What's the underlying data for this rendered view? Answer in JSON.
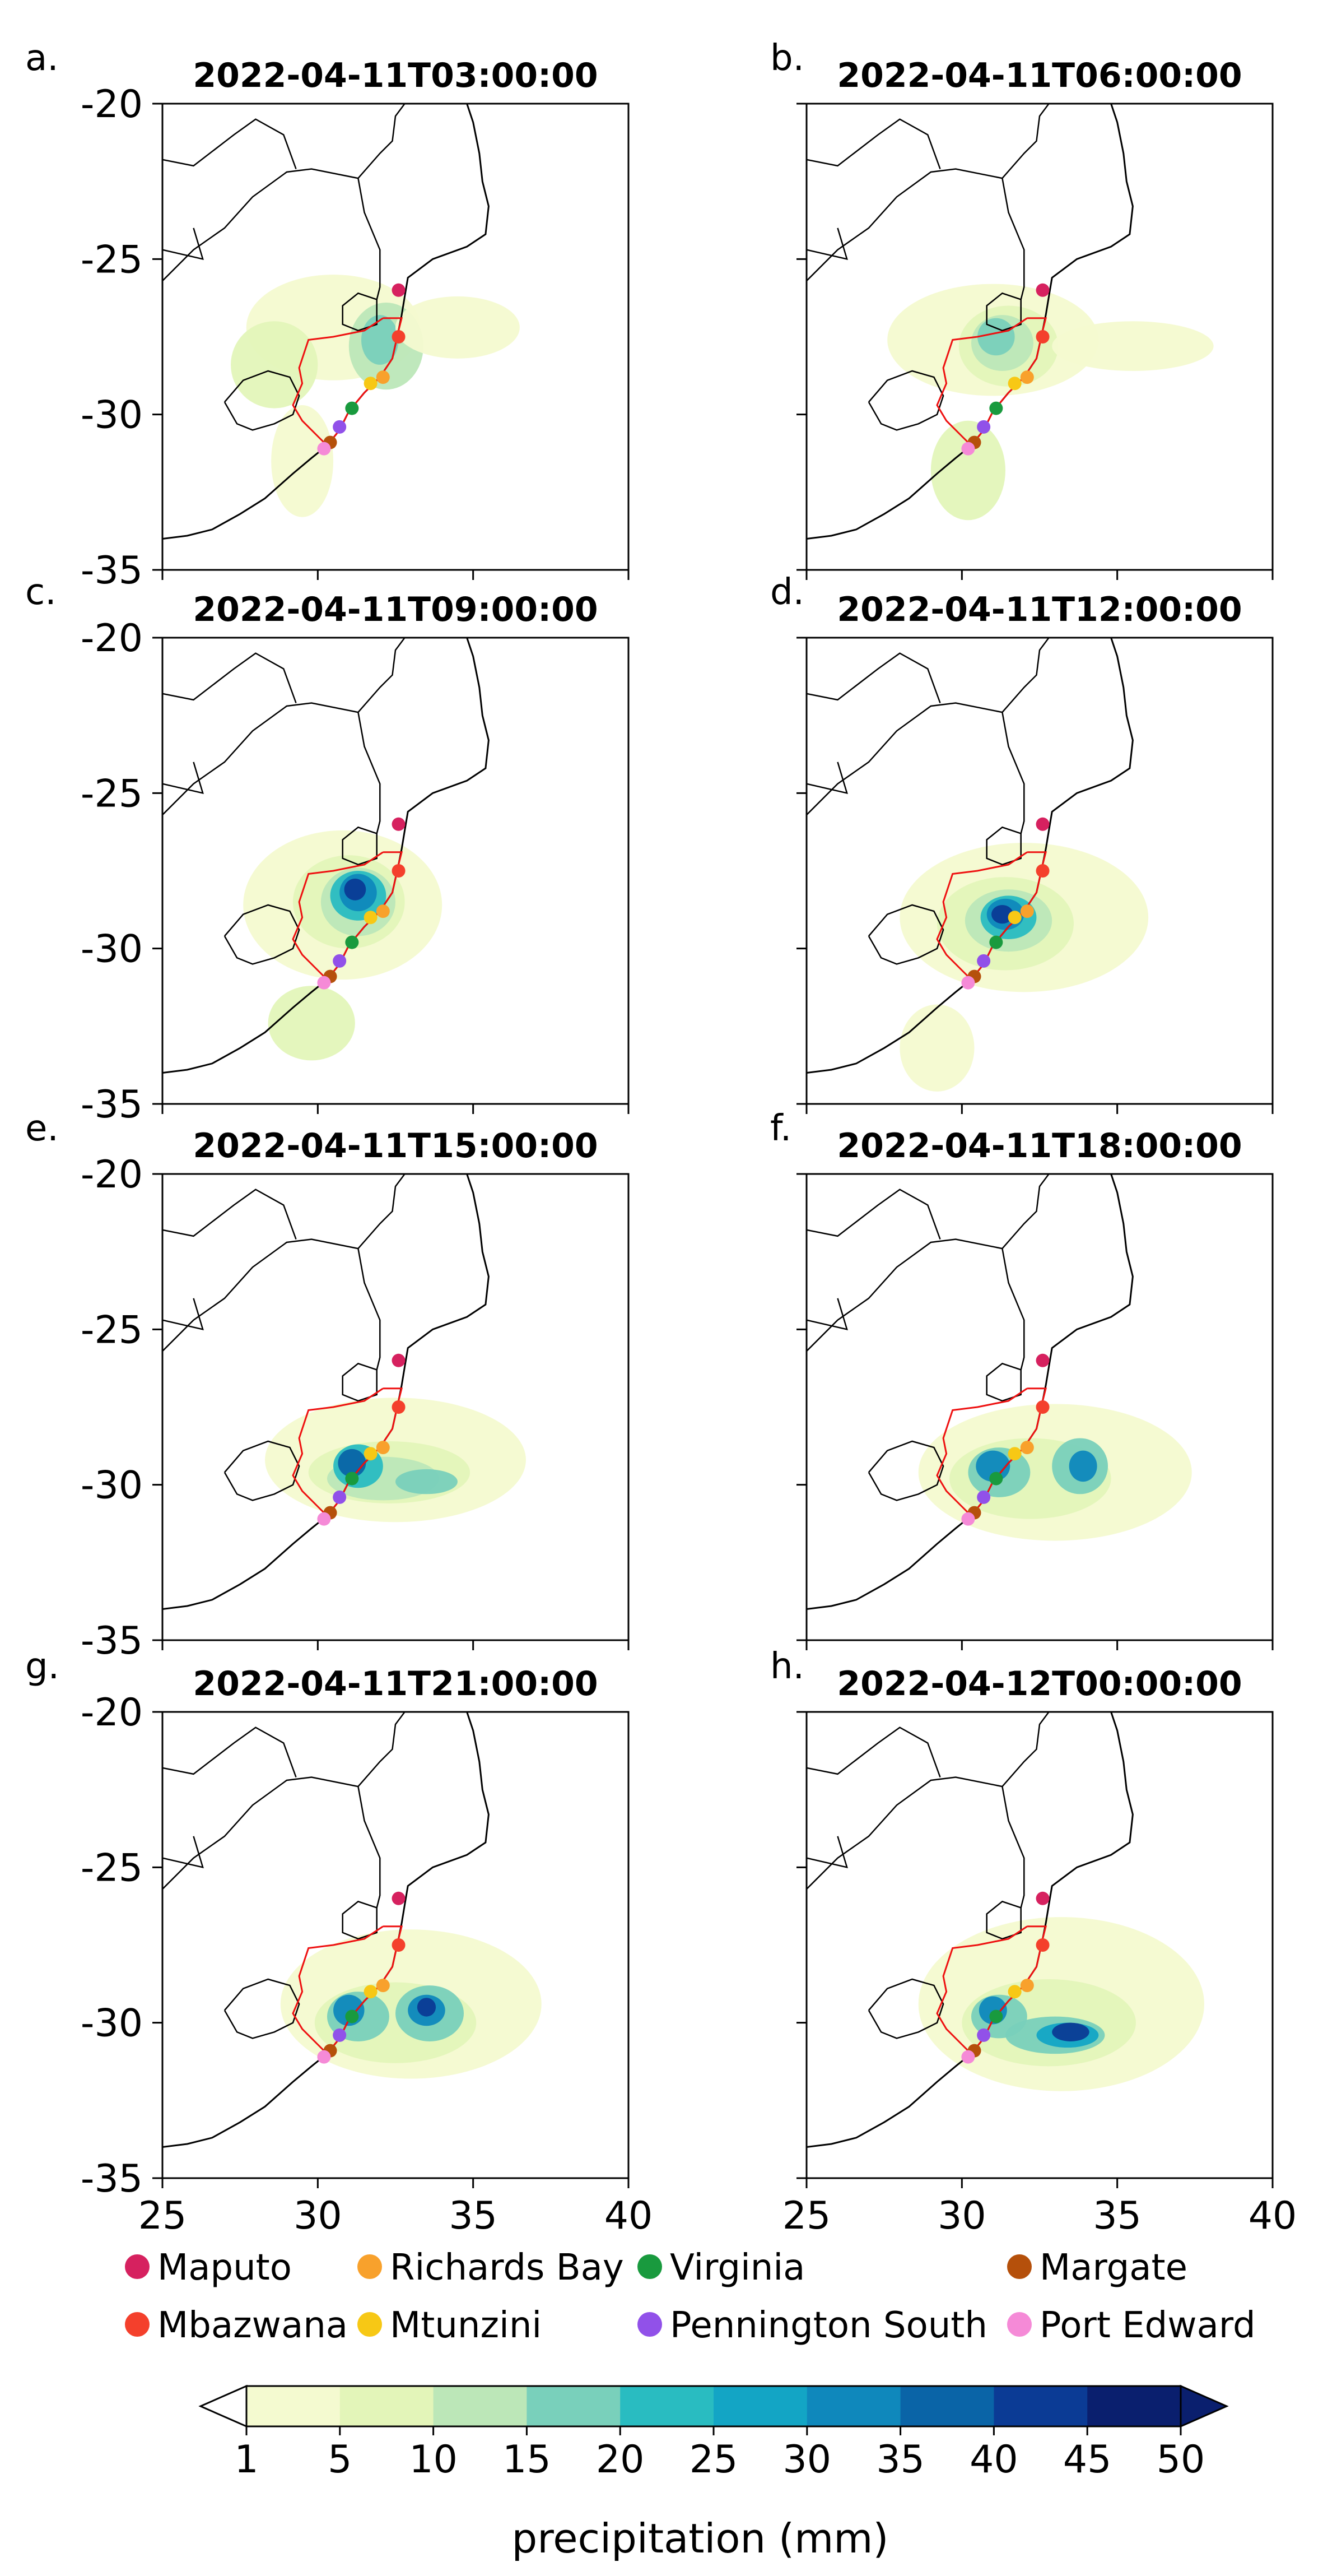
{
  "figure": {
    "xticks": [
      25,
      30,
      35,
      40
    ],
    "yticks": [
      -20,
      -25,
      -30,
      -35
    ],
    "xlim": [
      25,
      40
    ],
    "ylim": [
      -35,
      -20
    ]
  },
  "chart_data": {
    "type": "heatmap",
    "panels": [
      {
        "letter": "a.",
        "title": "2022-04-11T03:00:00"
      },
      {
        "letter": "b.",
        "title": "2022-04-11T06:00:00"
      },
      {
        "letter": "c.",
        "title": "2022-04-11T09:00:00"
      },
      {
        "letter": "d.",
        "title": "2022-04-11T12:00:00"
      },
      {
        "letter": "e.",
        "title": "2022-04-11T15:00:00"
      },
      {
        "letter": "f.",
        "title": "2022-04-11T18:00:00"
      },
      {
        "letter": "g.",
        "title": "2022-04-11T21:00:00"
      },
      {
        "letter": "h.",
        "title": "2022-04-12T00:00:00"
      }
    ],
    "stations": [
      {
        "name": "Maputo",
        "lon": 32.6,
        "lat": -26.0,
        "color": "#d6215f"
      },
      {
        "name": "Mbazwana",
        "lon": 32.6,
        "lat": -27.5,
        "color": "#f4402c"
      },
      {
        "name": "Richards Bay",
        "lon": 32.1,
        "lat": -28.8,
        "color": "#f8a12c"
      },
      {
        "name": "Mtunzini",
        "lon": 31.7,
        "lat": -29.0,
        "color": "#f7c815"
      },
      {
        "name": "Virginia",
        "lon": 31.1,
        "lat": -29.8,
        "color": "#199a3e"
      },
      {
        "name": "Pennington South",
        "lon": 30.7,
        "lat": -30.4,
        "color": "#9151e9"
      },
      {
        "name": "Margate",
        "lon": 30.4,
        "lat": -30.9,
        "color": "#b5500b"
      },
      {
        "name": "Port Edward",
        "lon": 30.2,
        "lat": -31.1,
        "color": "#f58ad7"
      }
    ],
    "colorbar": {
      "label": "precipitation (mm)",
      "ticks": [
        "1",
        "5",
        "10",
        "15",
        "20",
        "25",
        "30",
        "35",
        "40",
        "45",
        "50"
      ],
      "colors": [
        "#f4fad0",
        "#e3f5b9",
        "#bce7b8",
        "#79d0bb",
        "#29bcc1",
        "#13a5c5",
        "#0f88bc",
        "#0a64a7",
        "#0b3b95",
        "#0a1f6e"
      ],
      "extend": "both"
    }
  }
}
